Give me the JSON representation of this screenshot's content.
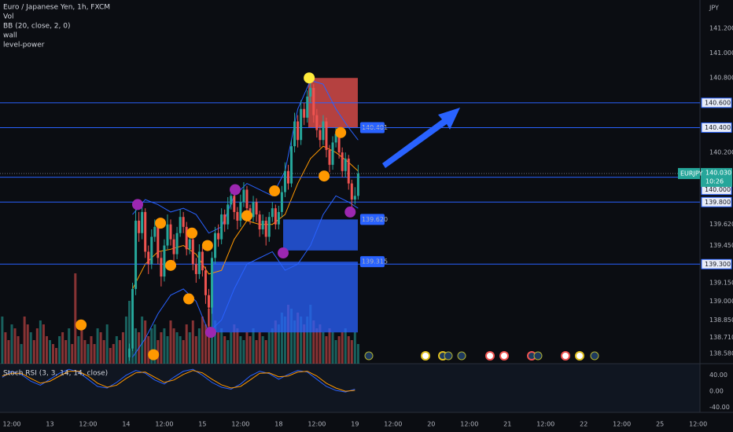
{
  "chart_data": {
    "type": "candlestick",
    "title": "Euro / Japanese Yen, 1h, FXCM",
    "indicators": [
      "Vol",
      "BB (20, close, 2, 0)",
      "wall",
      "level-power"
    ],
    "currency": "JPY",
    "xlim": [
      -3.713,
      216.58
    ],
    "ylim": [
      138.498,
      141.428
    ],
    "xticks": [
      {
        "value": 0,
        "label": "12:00"
      },
      {
        "value": 12,
        "label": "13"
      },
      {
        "value": 24,
        "label": "12:00"
      },
      {
        "value": 36,
        "label": "14"
      },
      {
        "value": 48,
        "label": "12:00"
      },
      {
        "value": 60,
        "label": "15"
      },
      {
        "value": 72,
        "label": "12:00"
      },
      {
        "value": 84,
        "label": "18"
      },
      {
        "value": 96,
        "label": "12:00"
      },
      {
        "value": 108,
        "label": "19"
      },
      {
        "value": 120,
        "label": "12:00"
      },
      {
        "value": 132,
        "label": "20"
      },
      {
        "value": 144,
        "label": "12:00"
      },
      {
        "value": 156,
        "label": "21"
      },
      {
        "value": 168,
        "label": "12:00"
      },
      {
        "value": 180,
        "label": "22"
      },
      {
        "value": 192,
        "label": "12:00"
      },
      {
        "value": 204,
        "label": "25"
      },
      {
        "value": 216,
        "label": "12:00"
      }
    ],
    "yticks": [
      {
        "value": 141.2,
        "label": "141.200"
      },
      {
        "value": 141.0,
        "label": "141.000"
      },
      {
        "value": 140.8,
        "label": "140.800"
      },
      {
        "value": 140.2,
        "label": "140.200"
      },
      {
        "value": 139.62,
        "label": "139.620"
      },
      {
        "value": 139.45,
        "label": "139.450"
      },
      {
        "value": 139.15,
        "label": "139.150"
      },
      {
        "value": 139.0,
        "label": "139.000"
      },
      {
        "value": 138.85,
        "label": "138.850"
      },
      {
        "value": 138.71,
        "label": "138.710"
      },
      {
        "value": 138.58,
        "label": "138.580"
      }
    ],
    "levels": [
      {
        "value": 140.6,
        "label": "140.600"
      },
      {
        "value": 140.4,
        "label": "140.400"
      },
      {
        "value": 140.0,
        "label": "140.000"
      },
      {
        "value": 139.8,
        "label": "139.800"
      },
      {
        "value": 139.3,
        "label": "139.300"
      }
    ],
    "last": {
      "value": 140.03,
      "label": "140.030",
      "symbol": "EURJPY",
      "countdown": "10:26"
    },
    "colors": {
      "up": "#26a69a",
      "down": "#ef5350",
      "level": "#2962ff",
      "bb_band": "#2962ff",
      "bb_basis": "#ff9800"
    },
    "candles": {
      "x": [
        37,
        38,
        39,
        40,
        41,
        42,
        43,
        44,
        45,
        46,
        47,
        48,
        49,
        50,
        51,
        52,
        53,
        54,
        55,
        56,
        57,
        58,
        59,
        60,
        61,
        62,
        63,
        64,
        65,
        66,
        67,
        68,
        69,
        70,
        71,
        72,
        73,
        74,
        75,
        76,
        77,
        78,
        79,
        80,
        81,
        82,
        83,
        84,
        85,
        86,
        87,
        88,
        89,
        90,
        91,
        92,
        93,
        94,
        95,
        96,
        97,
        98,
        99,
        100,
        101,
        102,
        103,
        104,
        105,
        106,
        107,
        108,
        109
      ],
      "open": [
        138.55,
        138.62,
        139.1,
        139.65,
        139.55,
        139.72,
        139.4,
        139.3,
        139.52,
        139.6,
        139.35,
        139.2,
        139.45,
        139.62,
        139.5,
        139.38,
        139.55,
        139.68,
        139.6,
        139.42,
        139.5,
        139.3,
        139.22,
        139.4,
        139.25,
        139.05,
        138.95,
        139.35,
        139.55,
        139.5,
        139.7,
        139.62,
        139.78,
        139.85,
        139.72,
        139.65,
        139.8,
        139.9,
        139.75,
        139.68,
        139.8,
        139.7,
        139.58,
        139.65,
        139.52,
        139.68,
        139.75,
        139.62,
        139.72,
        139.88,
        140.05,
        139.95,
        140.25,
        140.45,
        140.3,
        140.55,
        140.48,
        140.65,
        140.72,
        140.5,
        140.38,
        140.3,
        140.45,
        140.22,
        140.1,
        140.28,
        140.35,
        140.2,
        140.05,
        140.15,
        139.95,
        139.82,
        139.85
      ],
      "high": [
        138.66,
        139.15,
        139.78,
        139.72,
        139.8,
        139.75,
        139.45,
        139.58,
        139.66,
        139.63,
        139.4,
        139.5,
        139.7,
        139.66,
        139.54,
        139.6,
        139.74,
        139.72,
        139.64,
        139.56,
        139.53,
        139.35,
        139.46,
        139.44,
        139.28,
        139.1,
        139.4,
        139.6,
        139.62,
        139.75,
        139.74,
        139.84,
        139.92,
        139.88,
        139.76,
        139.86,
        139.96,
        139.93,
        139.78,
        139.85,
        139.83,
        139.73,
        139.7,
        139.68,
        139.72,
        139.8,
        139.78,
        139.77,
        139.93,
        140.12,
        140.1,
        140.3,
        140.52,
        140.5,
        140.62,
        140.6,
        140.7,
        140.82,
        140.75,
        140.55,
        140.42,
        140.5,
        140.48,
        140.26,
        140.33,
        140.4,
        140.38,
        140.24,
        140.2,
        140.18,
        139.98,
        139.92,
        140.1
      ],
      "low": [
        138.52,
        138.6,
        139.05,
        139.48,
        139.5,
        139.35,
        139.22,
        139.26,
        139.48,
        139.3,
        139.12,
        139.16,
        139.42,
        139.45,
        139.32,
        139.34,
        139.52,
        139.55,
        139.37,
        139.38,
        139.25,
        139.15,
        139.18,
        139.2,
        138.98,
        138.8,
        138.9,
        139.3,
        139.44,
        139.46,
        139.56,
        139.58,
        139.74,
        139.66,
        139.58,
        139.6,
        139.76,
        139.7,
        139.62,
        139.64,
        139.64,
        139.52,
        139.54,
        139.45,
        139.48,
        139.64,
        139.58,
        139.58,
        139.68,
        139.84,
        139.9,
        139.92,
        140.2,
        140.24,
        140.26,
        140.42,
        140.44,
        140.6,
        140.44,
        140.32,
        140.24,
        140.26,
        140.16,
        140.04,
        140.06,
        140.24,
        140.15,
        140.0,
        140.0,
        139.9,
        139.76,
        139.78,
        139.82
      ],
      "close": [
        138.62,
        139.1,
        139.65,
        139.55,
        139.72,
        139.4,
        139.3,
        139.52,
        139.6,
        139.35,
        139.2,
        139.45,
        139.62,
        139.5,
        139.38,
        139.55,
        139.68,
        139.6,
        139.42,
        139.5,
        139.3,
        139.22,
        139.4,
        139.25,
        139.05,
        138.95,
        139.35,
        139.55,
        139.5,
        139.7,
        139.62,
        139.78,
        139.85,
        139.72,
        139.65,
        139.8,
        139.9,
        139.75,
        139.68,
        139.8,
        139.7,
        139.58,
        139.65,
        139.52,
        139.68,
        139.75,
        139.62,
        139.72,
        139.88,
        140.05,
        139.95,
        140.25,
        140.45,
        140.3,
        140.55,
        140.48,
        140.65,
        140.72,
        140.5,
        140.38,
        140.3,
        140.45,
        140.22,
        140.1,
        140.28,
        140.35,
        140.2,
        140.05,
        140.15,
        139.95,
        139.82,
        139.85,
        140.03
      ]
    },
    "volume": {
      "lim": [
        0,
        400
      ],
      "x_start": -3,
      "values": [
        120,
        80,
        60,
        100,
        90,
        70,
        50,
        120,
        100,
        80,
        60,
        90,
        110,
        100,
        70,
        60,
        50,
        40,
        70,
        80,
        60,
        90,
        50,
        230,
        70,
        110,
        60,
        50,
        70,
        50,
        90,
        80,
        60,
        100,
        40,
        50,
        70,
        60,
        80,
        120,
        160,
        130,
        90,
        80,
        120,
        110,
        70,
        90,
        100,
        60,
        80,
        90,
        70,
        110,
        90,
        80,
        70,
        60,
        100,
        80,
        110,
        70,
        90,
        120,
        100,
        140,
        160,
        110,
        80,
        90,
        70,
        60,
        80,
        100,
        90,
        70,
        60,
        80,
        70,
        90,
        60,
        80,
        70,
        60,
        80,
        90,
        110,
        100,
        130,
        120,
        150,
        140,
        110,
        130,
        120,
        100,
        120,
        150,
        110,
        90,
        100,
        80,
        70,
        90,
        80,
        60,
        70,
        80,
        90,
        70,
        60,
        80,
        50
      ]
    },
    "bb": {
      "x": [
        38,
        42,
        46,
        50,
        54,
        58,
        62,
        66,
        70,
        74,
        78,
        82,
        86,
        90,
        94,
        98,
        102,
        106,
        109
      ],
      "upper": [
        139.7,
        139.82,
        139.78,
        139.72,
        139.75,
        139.7,
        139.55,
        139.6,
        139.85,
        139.95,
        139.9,
        139.85,
        140.05,
        140.55,
        140.78,
        140.75,
        140.55,
        140.4,
        140.3
      ],
      "basis": [
        139.1,
        139.3,
        139.4,
        139.42,
        139.45,
        139.38,
        139.22,
        139.25,
        139.5,
        139.65,
        139.62,
        139.62,
        139.7,
        139.95,
        140.15,
        140.25,
        140.2,
        140.12,
        140.05
      ],
      "lower": [
        138.55,
        138.7,
        138.9,
        139.05,
        139.1,
        139.0,
        138.75,
        138.85,
        139.1,
        139.3,
        139.35,
        139.4,
        139.25,
        139.3,
        139.45,
        139.7,
        139.85,
        139.8,
        139.75
      ]
    },
    "markers": {
      "x": [
        93.6,
        39.6,
        70.3,
        62.6,
        85.4,
        106.5,
        21.8,
        44.6,
        46.8,
        50.0,
        55.7,
        56.7,
        61.6,
        74.0,
        82.7,
        98.3,
        103.5
      ],
      "y": [
        140.8,
        139.78,
        139.9,
        138.75,
        139.39,
        139.72,
        138.81,
        138.57,
        139.63,
        139.29,
        139.02,
        139.55,
        139.45,
        139.69,
        139.89,
        140.01,
        140.36
      ],
      "colors": [
        "#ffeb3b",
        "#9c27b0",
        "#9c27b0",
        "#9c27b0",
        "#9c27b0",
        "#9c27b0",
        "#ff9800",
        "#ff9800",
        "#ff9800",
        "#ff9800",
        "#ff9800",
        "#ff9800",
        "#ff9800",
        "#ff9800",
        "#ff9800",
        "#ff9800",
        "#ff9800"
      ]
    },
    "zones": [
      {
        "x": [
          93.3,
          108.9
        ],
        "y": [
          140.4,
          140.8
        ],
        "color": "#ef5350",
        "label": "140.401"
      },
      {
        "x": [
          85.4,
          108.9
        ],
        "y": [
          139.41,
          139.66
        ],
        "color": "#2962ff",
        "label": "139.620"
      },
      {
        "x": [
          63.1,
          108.9
        ],
        "y": [
          138.75,
          139.32
        ],
        "color": "#2962ff",
        "label": "139.315"
      }
    ],
    "stoch": {
      "title": "Stoch RSI (3, 3, 14, 14, close)",
      "ylim": [
        -53,
        69
      ],
      "yticks": [
        {
          "value": 40,
          "label": "40.00"
        },
        {
          "value": 0,
          "label": "0.00"
        },
        {
          "value": -40,
          "label": "-40.00"
        }
      ],
      "x": [
        -3,
        0,
        3,
        6,
        9,
        12,
        15,
        18,
        21,
        24,
        27,
        30,
        33,
        36,
        39,
        42,
        45,
        48,
        51,
        54,
        57,
        60,
        63,
        66,
        69,
        72,
        75,
        78,
        81,
        84,
        87,
        90,
        93,
        96,
        99,
        102,
        105,
        108
      ],
      "k": [
        35,
        50,
        42,
        25,
        15,
        30,
        45,
        55,
        48,
        30,
        12,
        8,
        22,
        40,
        52,
        45,
        28,
        18,
        35,
        50,
        55,
        40,
        22,
        10,
        5,
        18,
        38,
        50,
        44,
        30,
        42,
        52,
        48,
        30,
        12,
        2,
        -2,
        5
      ],
      "d": [
        38,
        45,
        45,
        32,
        20,
        25,
        38,
        50,
        50,
        38,
        20,
        10,
        15,
        32,
        46,
        48,
        35,
        22,
        28,
        42,
        52,
        46,
        30,
        16,
        8,
        12,
        28,
        45,
        46,
        36,
        38,
        48,
        50,
        38,
        20,
        8,
        0,
        2
      ],
      "k_color": "#2962ff",
      "d_color": "#ff9800"
    }
  }
}
